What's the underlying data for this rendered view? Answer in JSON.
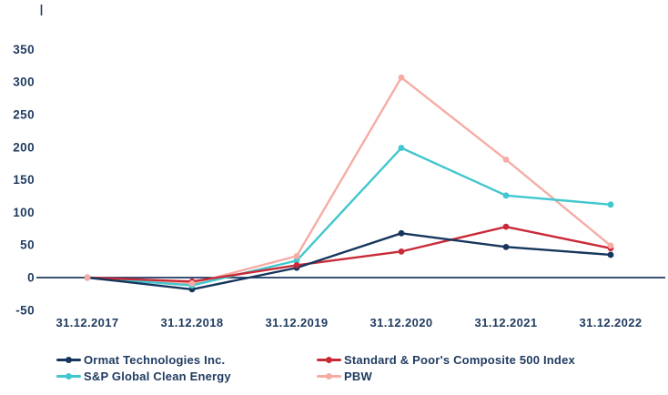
{
  "chart_data": {
    "type": "line",
    "title": "",
    "xlabel": "",
    "ylabel": "",
    "x_categories": [
      "31.12.2017",
      "31.12.2018",
      "31.12.2019",
      "31.12.2020",
      "31.12.2021",
      "31.12.2022"
    ],
    "y_ticks": [
      -50,
      0,
      50,
      100,
      150,
      200,
      250,
      300,
      350
    ],
    "ylim": [
      -50,
      350
    ],
    "grid": false,
    "zero_axis_line": true,
    "legend_position": "bottom",
    "axis_color": "#1e3a5f",
    "series": [
      {
        "name": "Ormat Technologies Inc.",
        "color": "#17365d",
        "values": [
          0,
          -18,
          15,
          68,
          47,
          35
        ]
      },
      {
        "name": "Standard & Poor's Composite 500 Index",
        "color": "#c92a38",
        "values": [
          0,
          -6,
          19,
          40,
          78,
          45
        ]
      },
      {
        "name": "S&P Global Clean Energy",
        "color": "#41c7ce",
        "values": [
          0,
          -12,
          26,
          199,
          126,
          112
        ]
      },
      {
        "name": "PBW",
        "color": "#f6aca5",
        "values": [
          0,
          -9,
          33,
          307,
          181,
          49
        ]
      }
    ]
  }
}
